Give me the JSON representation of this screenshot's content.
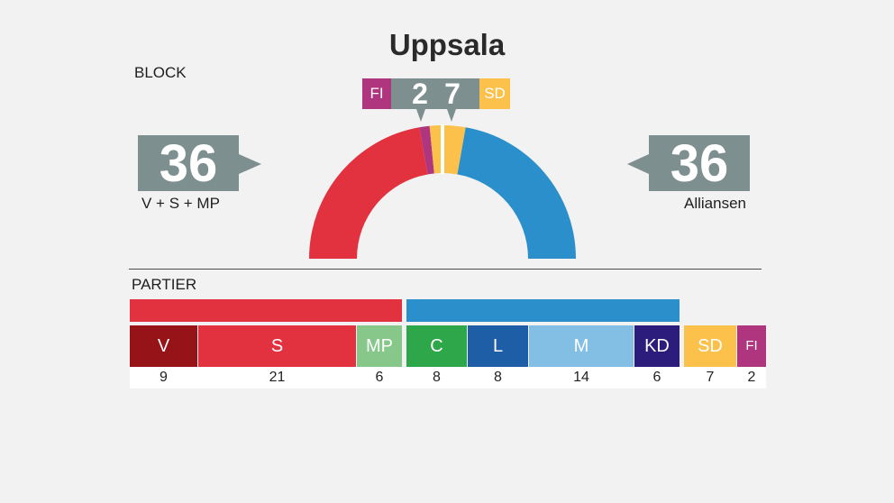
{
  "title": "Uppsala",
  "colors": {
    "background": "#f2f2f2",
    "label_box": "#7e8f90"
  },
  "chart_data": [
    {
      "type": "pie",
      "title": "BLOCK",
      "categories": [
        "V + S + MP",
        "FI",
        "SD",
        "Alliansen"
      ],
      "values": [
        36,
        2,
        7,
        36
      ],
      "colors": [
        "#e2323f",
        "#b0357f",
        "#fcc14b",
        "#2b8fcb"
      ]
    },
    {
      "type": "bar",
      "title": "PARTIER",
      "categories": [
        "V",
        "S",
        "MP",
        "C",
        "L",
        "M",
        "KD",
        "SD",
        "FI"
      ],
      "values": [
        9,
        21,
        6,
        8,
        8,
        14,
        6,
        7,
        2
      ],
      "colors": [
        "#961318",
        "#e3323f",
        "#87c88a",
        "#2ea74a",
        "#1d5ea7",
        "#83bfe4",
        "#2c1c7c",
        "#fcc14b",
        "#b0357f"
      ],
      "block_colors": [
        "#e2323f",
        "#e2323f",
        "#e2323f",
        "#2b8fcb",
        "#2b8fcb",
        "#2b8fcb",
        "#2b8fcb",
        null,
        null
      ]
    }
  ]
}
